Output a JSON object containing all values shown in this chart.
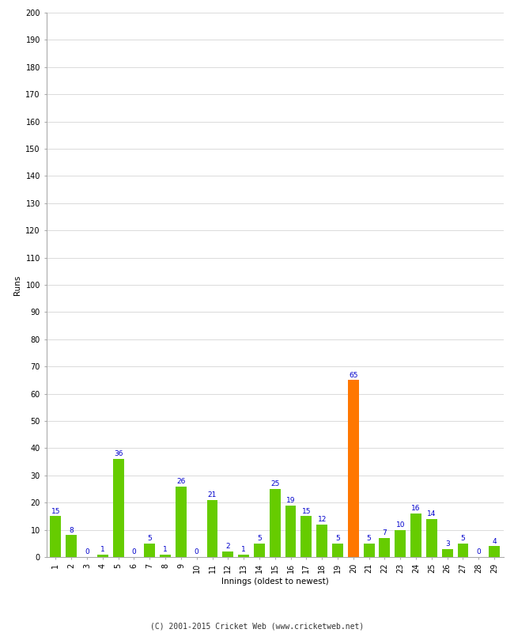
{
  "xlabel": "Innings (oldest to newest)",
  "ylabel": "Runs",
  "values": [
    15,
    8,
    0,
    1,
    36,
    0,
    5,
    1,
    26,
    0,
    21,
    2,
    1,
    5,
    25,
    19,
    15,
    12,
    5,
    65,
    5,
    7,
    10,
    16,
    14,
    3,
    5,
    0,
    4
  ],
  "innings": [
    1,
    2,
    3,
    4,
    5,
    6,
    7,
    8,
    9,
    10,
    11,
    12,
    13,
    14,
    15,
    16,
    17,
    18,
    19,
    20,
    21,
    22,
    23,
    24,
    25,
    26,
    27,
    28,
    29
  ],
  "highlight_inning": 20,
  "bar_color_normal": "#66cc00",
  "bar_color_highlight": "#ff7700",
  "label_color": "#0000cc",
  "background_color": "#ffffff",
  "grid_color": "#cccccc",
  "ylim": [
    0,
    200
  ],
  "yticks": [
    0,
    10,
    20,
    30,
    40,
    50,
    60,
    70,
    80,
    90,
    100,
    110,
    120,
    130,
    140,
    150,
    160,
    170,
    180,
    190,
    200
  ],
  "footer": "(C) 2001-2015 Cricket Web (www.cricketweb.net)",
  "label_fontsize": 6.5,
  "axis_label_fontsize": 7.5,
  "tick_fontsize": 7,
  "footer_fontsize": 7
}
